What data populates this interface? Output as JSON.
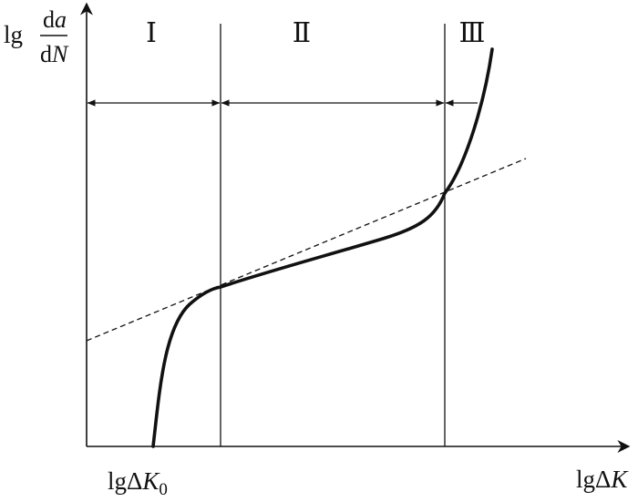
{
  "y_axis_label": {
    "prefix": "lg",
    "numerator": {
      "d": "d",
      "var": "a"
    },
    "denominator": {
      "d": "d",
      "var": "N"
    }
  },
  "x_axis_label": {
    "prefix": "lgΔ",
    "var": "K"
  },
  "threshold_label": {
    "prefix": "lgΔ",
    "var": "K",
    "subscript": "0"
  },
  "regions": [
    {
      "label": "Ⅰ"
    },
    {
      "label": "Ⅱ"
    },
    {
      "label": "Ⅲ"
    }
  ],
  "colors": {
    "ink": "#111111",
    "background": "#ffffff"
  }
}
